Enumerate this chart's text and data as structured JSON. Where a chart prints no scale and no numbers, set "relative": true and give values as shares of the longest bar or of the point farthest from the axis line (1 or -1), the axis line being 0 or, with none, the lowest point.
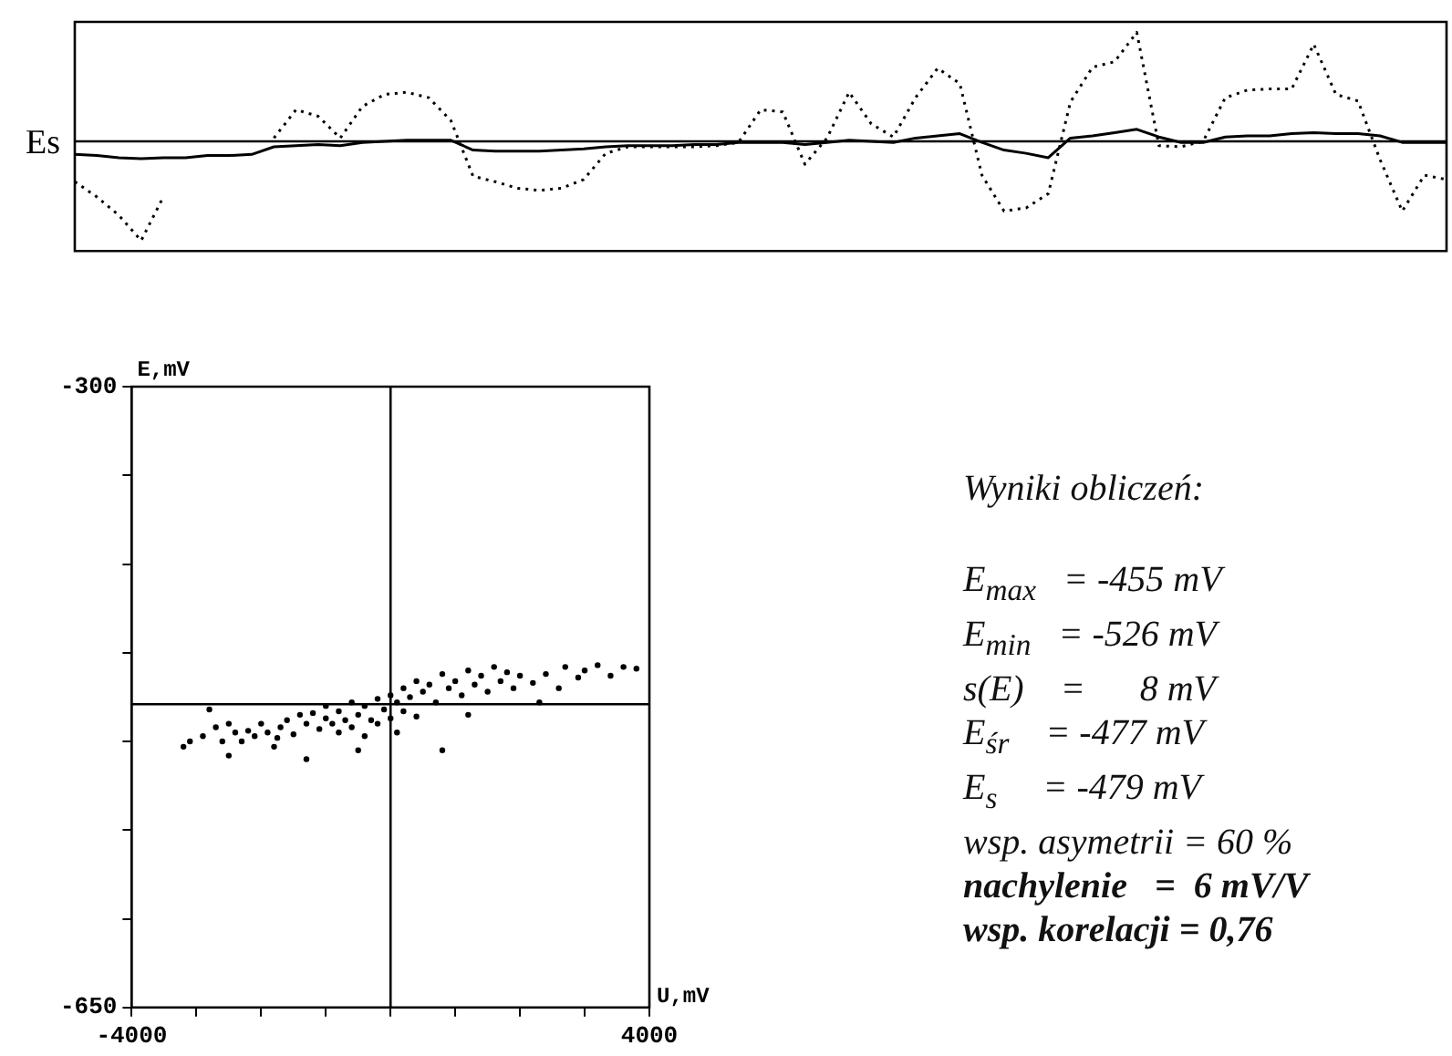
{
  "chart_data": [
    {
      "type": "line",
      "relative": true,
      "ylabel": "Es",
      "categories": [
        null,
        null,
        null,
        null,
        null,
        null,
        null,
        null,
        null,
        null,
        null,
        null,
        null,
        null,
        null,
        null,
        null,
        null,
        null,
        null,
        null,
        null,
        null,
        null,
        null,
        null,
        null,
        null,
        null,
        null,
        null,
        null,
        null,
        null,
        null,
        null,
        null,
        null,
        null,
        null,
        null,
        null,
        null,
        null,
        null,
        null,
        null,
        null,
        null,
        null,
        null,
        null,
        null,
        null,
        null,
        null,
        null,
        null,
        null,
        null,
        null,
        null,
        null
      ],
      "ref_lines": [
        {
          "axis": "y",
          "value": 0
        }
      ],
      "series": [
        {
          "color": "#000000",
          "line_style": "dotted",
          "values": [
            -0.37,
            -0.51,
            -0.68,
            -0.91,
            -0.51,
            null,
            null,
            null,
            null,
            0.03,
            0.29,
            0.23,
            0.03,
            0.32,
            0.43,
            0.45,
            0.4,
            0.19,
            -0.32,
            -0.37,
            -0.43,
            -0.45,
            -0.43,
            -0.35,
            -0.11,
            -0.05,
            -0.05,
            -0.05,
            -0.05,
            -0.04,
            -0.01,
            0.29,
            0.27,
            -0.21,
            0.03,
            0.45,
            0.16,
            0.04,
            0.4,
            0.67,
            0.53,
            -0.31,
            -0.64,
            -0.61,
            -0.48,
            0.36,
            0.68,
            0.73,
            1,
            -0.04,
            -0.05,
            0,
            0.4,
            0.47,
            0.48,
            0.48,
            0.89,
            0.43,
            0.37,
            -0.17,
            -0.64,
            -0.31,
            -0.35
          ]
        },
        {
          "color": "#000000",
          "line_style": "solid",
          "values": [
            -0.12,
            -0.13,
            -0.15,
            -0.16,
            -0.15,
            -0.15,
            -0.13,
            -0.13,
            -0.12,
            -0.05,
            -0.04,
            -0.03,
            -0.04,
            -0.01,
            0,
            0.01,
            0.01,
            0.01,
            -0.08,
            -0.09,
            -0.09,
            -0.09,
            -0.08,
            -0.07,
            -0.05,
            -0.04,
            -0.04,
            -0.04,
            -0.03,
            -0.03,
            -0.01,
            -0.01,
            -0.01,
            -0.03,
            -0.01,
            0.01,
            0,
            -0.01,
            0.03,
            0.05,
            0.07,
            -0.01,
            -0.08,
            -0.11,
            -0.15,
            0.03,
            0.05,
            0.08,
            0.11,
            0.04,
            -0.01,
            -0.01,
            0.04,
            0.05,
            0.05,
            0.07,
            0.08,
            0.07,
            0.07,
            0.05,
            -0.01,
            -0.01,
            -0.01
          ]
        }
      ]
    },
    {
      "type": "scatter",
      "xlabel": "U,mV",
      "ylabel": "E,mV",
      "xlim": [
        -4000,
        4000
      ],
      "ylim": [
        -650,
        -300
      ],
      "xticks": [
        -4000,
        {
          "value": -3000,
          "label": null
        },
        {
          "value": -2000,
          "label": null
        },
        {
          "value": -1000,
          "label": null
        },
        {
          "value": 0,
          "label": null
        },
        {
          "value": 1000,
          "label": null
        },
        {
          "value": 2000,
          "label": null
        },
        {
          "value": 3000,
          "label": null
        },
        4000
      ],
      "yticks": [
        -650,
        {
          "value": -600,
          "label": null
        },
        {
          "value": -550,
          "label": null
        },
        {
          "value": -500,
          "label": null
        },
        {
          "value": -450,
          "label": null
        },
        {
          "value": -400,
          "label": null
        },
        {
          "value": -350,
          "label": null
        },
        -300
      ],
      "ref_lines": [
        {
          "axis": "x",
          "value": 0
        },
        {
          "axis": "y",
          "value": -479
        }
      ],
      "marker": "circle",
      "series": [
        {
          "color": "#000000",
          "x": [
            -3200,
            -3100,
            -2900,
            -2700,
            -2600,
            -2500,
            -2400,
            -2300,
            -2200,
            -2100,
            -2000,
            -1900,
            -1800,
            -1750,
            -1700,
            -1600,
            -1500,
            -1400,
            -1300,
            -1200,
            -1100,
            -1000,
            -1000,
            -900,
            -800,
            -800,
            -700,
            -600,
            -600,
            -500,
            -400,
            -400,
            -300,
            -200,
            -200,
            -100,
            0,
            0,
            100,
            200,
            200,
            300,
            400,
            400,
            500,
            600,
            700,
            800,
            900,
            1000,
            1100,
            1200,
            1300,
            1400,
            1500,
            1600,
            1700,
            1800,
            1900,
            2000,
            2200,
            2400,
            2600,
            2700,
            2900,
            3000,
            3200,
            3400,
            3600,
            3800,
            -2800,
            -1300,
            -500,
            800,
            -2500,
            100,
            1200,
            2300
          ],
          "values": [
            -503,
            -500,
            -497,
            -492,
            -500,
            -490,
            -495,
            -500,
            -494,
            -497,
            -490,
            -495,
            -503,
            -498,
            -492,
            -488,
            -496,
            -485,
            -490,
            -484,
            -493,
            -487,
            -480,
            -490,
            -483,
            -495,
            -488,
            -478,
            -492,
            -485,
            -480,
            -497,
            -488,
            -476,
            -490,
            -482,
            -474,
            -487,
            -478,
            -470,
            -483,
            -475,
            -466,
            -486,
            -472,
            -468,
            -478,
            -462,
            -470,
            -466,
            -474,
            -460,
            -468,
            -463,
            -472,
            -458,
            -466,
            -461,
            -470,
            -463,
            -467,
            -462,
            -470,
            -458,
            -464,
            -460,
            -457,
            -463,
            -458,
            -459,
            -482,
            -510,
            -505,
            -505,
            -508,
            -495,
            -485,
            -478
          ]
        }
      ]
    },
    {
      "type": "other",
      "title": "Wyniki obliczeń:",
      "annotations": [
        "E$_{max}$   = -455 mV",
        "E$_{min}$   = -526 mV",
        "s(E)    =      8 mV",
        "E$_{śr}$    = -477 mV",
        "E$_{s}$     = -479 mV",
        "wsp. asymetrii = 60 %",
        "nachylenie   =  6 mV/V",
        "wsp. korelacji = 0,76"
      ]
    }
  ]
}
